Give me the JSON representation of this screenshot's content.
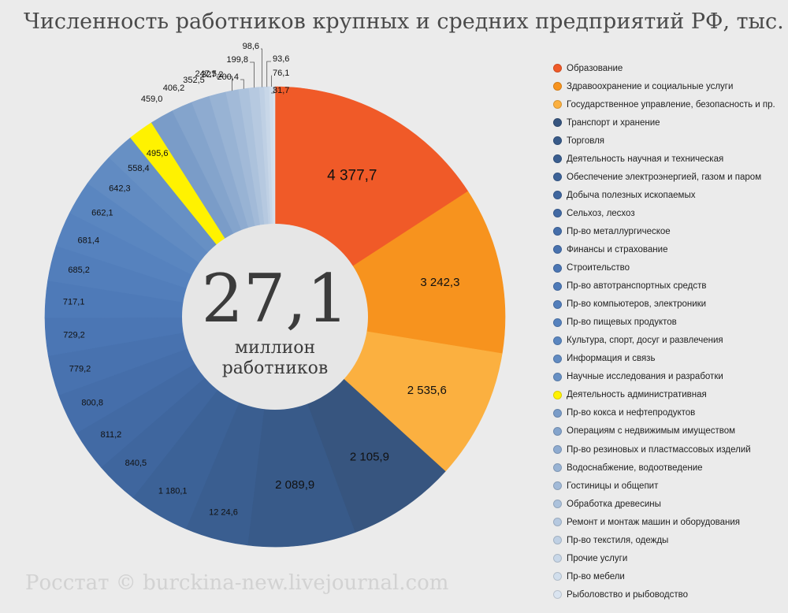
{
  "title": "Численность работников крупных и средних предприятий РФ, тыс.",
  "source": "Росстат © burckina-new.livejournal.com",
  "center": {
    "value": "27,1",
    "line1": "миллион",
    "line2": "работников"
  },
  "chart_data": {
    "type": "pie",
    "variant": "donut",
    "title": "Численность работников крупных и средних предприятий РФ, тыс.",
    "total_label": "27,1 миллион работников",
    "legend_position": "right",
    "slices": [
      {
        "name": "Образование",
        "value": 4377.7,
        "label": "4 377,7",
        "color": "#f05a28"
      },
      {
        "name": "Здравоохранение и социальные услуги",
        "value": 3242.3,
        "label": "3 242,3",
        "color": "#f7931e"
      },
      {
        "name": "Государственное управление, безопасность и пр.",
        "value": 2535.6,
        "label": "2 535,6",
        "color": "#fbb040"
      },
      {
        "name": "Транспорт и хранение",
        "value": 2105.9,
        "label": "2 105,9",
        "color": "#37557f"
      },
      {
        "name": "Торговля",
        "value": 2089.9,
        "label": "2 089,9",
        "color": "#385a89"
      },
      {
        "name": "Деятельность научная и техническая",
        "value": 1224.6,
        "label": "12 24,6",
        "color": "#3a5e90"
      },
      {
        "name": "Обеспечение электроэнергией, газом и паром",
        "value": 1180.1,
        "label": "1 180,1",
        "color": "#3c6297"
      },
      {
        "name": "Добыча полезных ископаемых",
        "value": 840.5,
        "label": "840,5",
        "color": "#3f669e"
      },
      {
        "name": "Сельхоз, лесхоз",
        "value": 811.2,
        "label": "811,2",
        "color": "#426aa4"
      },
      {
        "name": "Пр-во металлургическое",
        "value": 800.8,
        "label": "800,8",
        "color": "#456eaa"
      },
      {
        "name": "Финансы и страхование",
        "value": 779.2,
        "label": "779,2",
        "color": "#4872af"
      },
      {
        "name": "Строительство",
        "value": 729.2,
        "label": "729,2",
        "color": "#4b76b4"
      },
      {
        "name": "Пр-во автотранспортных средств",
        "value": 717.1,
        "label": "717,1",
        "color": "#4e7ab8"
      },
      {
        "name": "Пр-во компьютеров, электроники",
        "value": 685.2,
        "label": "685,2",
        "color": "#527ebb"
      },
      {
        "name": "Пр-во пищевых продуктов",
        "value": 681.4,
        "label": "681,4",
        "color": "#5682be"
      },
      {
        "name": "Культура, спорт, досуг и развлечения",
        "value": 662.1,
        "label": "662,1",
        "color": "#5a86c0"
      },
      {
        "name": "Информация и связь",
        "value": 642.3,
        "label": "642,3",
        "color": "#618bc2"
      },
      {
        "name": "Научные исследования и разработки",
        "value": 558.4,
        "label": "558,4",
        "color": "#6790c4"
      },
      {
        "name": "Деятельность административная",
        "value": 495.6,
        "label": "495,6",
        "color": "#fff200"
      },
      {
        "name": "Пр-во кокса и нефтепродуктов",
        "value": 459.0,
        "label": "459,0",
        "color": "#7a9cc8"
      },
      {
        "name": "Операциям с недвижимым имуществом",
        "value": 406.2,
        "label": "406,2",
        "color": "#84a4cc"
      },
      {
        "name": "Пр-во резиновых и пластмассовых изделий",
        "value": 352.5,
        "label": "352,5",
        "color": "#8eabd0"
      },
      {
        "name": "Водоснабжение, водоотведение",
        "value": 327.2,
        "label": "327,2",
        "color": "#98b3d4"
      },
      {
        "name": "Гостиницы и общепит",
        "value": 247.5,
        "label": "247,5",
        "color": "#a2bad8"
      },
      {
        "name": "Обработка древесины",
        "value": 200.4,
        "label": "200,4",
        "color": "#acc2dc"
      },
      {
        "name": "Ремонт и монтаж машин и оборудования",
        "value": 199.8,
        "label": "199,8",
        "color": "#b6c9e0"
      },
      {
        "name": "Пр-во текстиля, одежды",
        "value": 98.6,
        "label": "98,6",
        "color": "#bfd0e4"
      },
      {
        "name": "Прочие услуги",
        "value": 93.6,
        "label": "93,6",
        "color": "#c8d7e8"
      },
      {
        "name": "Пр-во мебели",
        "value": 76.1,
        "label": "76,1",
        "color": "#d1deec"
      },
      {
        "name": "Рыболовство и рыбоводство",
        "value": 31.7,
        "label": "31,7",
        "color": "#dae4f0"
      }
    ]
  }
}
